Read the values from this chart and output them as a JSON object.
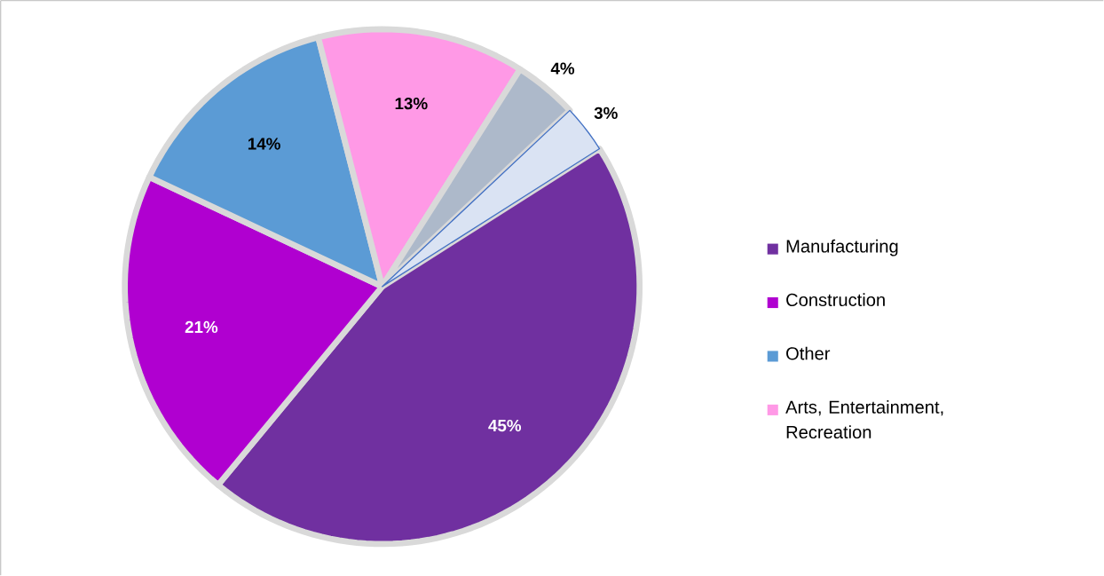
{
  "chart_data": {
    "type": "pie",
    "categories": [
      "Manufacturing",
      "Construction",
      "Other",
      "Arts, Entertainment, Recreation",
      null,
      null
    ],
    "values": [
      45,
      21,
      14,
      13,
      4,
      3
    ],
    "colors": [
      "#7030a0",
      "#b000d0",
      "#5b9bd5",
      "#ff99e6",
      "#adb9ca",
      "#dae3f3"
    ],
    "value_labels": [
      "45%",
      "21%",
      "14%",
      "13%",
      "4%",
      "3%"
    ],
    "legend": "right"
  }
}
